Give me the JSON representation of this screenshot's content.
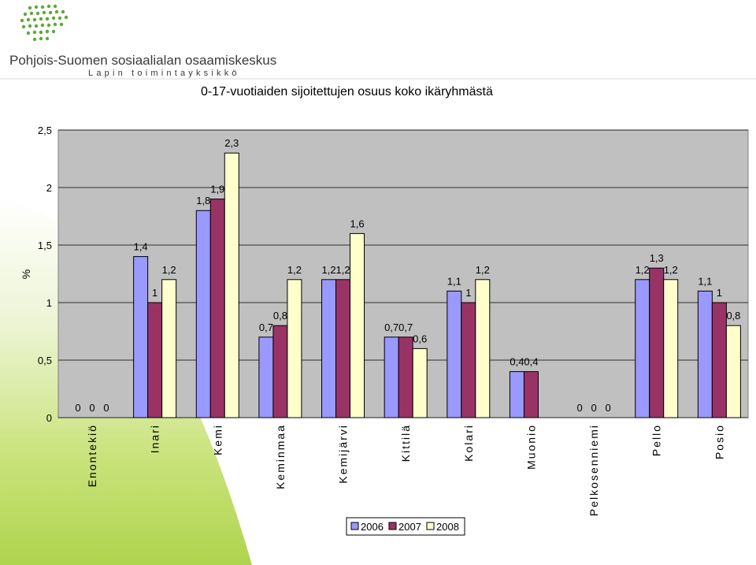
{
  "header": {
    "org_name": "Pohjois-Suomen sosiaalialan osaamiskeskus",
    "org_subtitle": "Lapin toimintayksikkö"
  },
  "colors": {
    "logo_green": "#5fa837",
    "series_2006": "#9999ff",
    "series_2007": "#993366",
    "series_2008": "#ffffcc",
    "plot_bg": "#c0c0c0",
    "accent_green": "#a6cf3a"
  },
  "chart_data": {
    "type": "bar",
    "title": "0-17-vuotiaiden sijoitettujen osuus koko ikäryhmästä",
    "ylabel": "%",
    "ylim": [
      0,
      2.5
    ],
    "yticks": [
      "0",
      "0,5",
      "1",
      "1,5",
      "2",
      "2,5"
    ],
    "categories": [
      "Enontekiö",
      "Inari",
      "Kemi",
      "Keminmaa",
      "Kemijärvi",
      "Kittilä",
      "Kolari",
      "Muonio",
      "Pelkosenniemi",
      "Pello",
      "Posio"
    ],
    "series": [
      {
        "name": "2006",
        "values": [
          0,
          1.4,
          1.8,
          0.7,
          1.2,
          0.7,
          1.1,
          0.4,
          0,
          1.2,
          1.1
        ],
        "labels": [
          "0",
          "1,4",
          "1,8",
          "0,7",
          "1,2",
          "0,7",
          "1,1",
          "0,4",
          "0",
          "1,2",
          "1,1"
        ]
      },
      {
        "name": "2007",
        "values": [
          0,
          1,
          1.9,
          0.8,
          1.2,
          0.7,
          1,
          0.4,
          0,
          1.3,
          1
        ],
        "labels": [
          "0",
          "1",
          "1,9",
          "0,8",
          "1,2",
          "0,7",
          "1",
          "0,4",
          "0",
          "1,3",
          "1"
        ]
      },
      {
        "name": "2008",
        "values": [
          0,
          1.2,
          2.3,
          1.2,
          1.6,
          0.6,
          1.2,
          null,
          0,
          1.2,
          0.8
        ],
        "labels": [
          "0",
          "1,2",
          "2,3",
          "1,2",
          "1,6",
          "0,6",
          "1,2",
          null,
          "0",
          "1,2",
          "0,8"
        ]
      }
    ],
    "legend": {
      "position": "bottom-center",
      "entries": [
        "2006",
        "2007",
        "2008"
      ]
    },
    "grid": "horizontal"
  }
}
